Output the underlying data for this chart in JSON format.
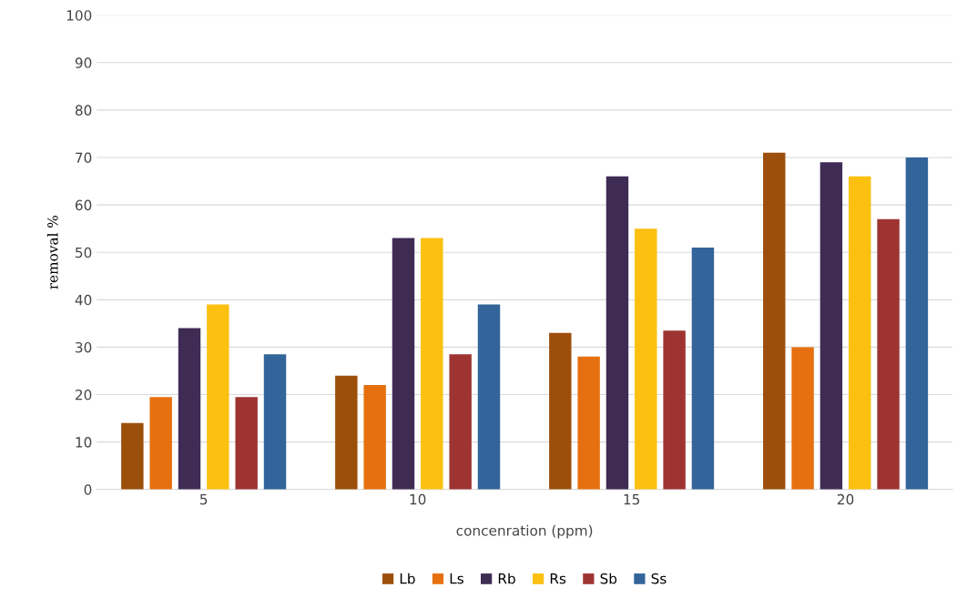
{
  "chart_data": {
    "type": "bar",
    "xlabel": "concenration (ppm)",
    "ylabel": "removal %",
    "categories": [
      "5",
      "10",
      "15",
      "20"
    ],
    "series": [
      {
        "name": "Lb",
        "color": "#9c4f0b",
        "values": [
          14,
          24,
          33,
          71
        ]
      },
      {
        "name": "Ls",
        "color": "#e6700f",
        "values": [
          19.5,
          22,
          28,
          30
        ]
      },
      {
        "name": "Rb",
        "color": "#3e2c55",
        "values": [
          34,
          53,
          66,
          69
        ]
      },
      {
        "name": "Rs",
        "color": "#fbc010",
        "values": [
          39,
          53,
          55,
          66
        ]
      },
      {
        "name": "Sb",
        "color": "#9e3432",
        "values": [
          19.5,
          28.5,
          33.5,
          57
        ]
      },
      {
        "name": "Ss",
        "color": "#33649a",
        "values": [
          28.5,
          39,
          51,
          70
        ]
      }
    ],
    "ylim": [
      0,
      100
    ],
    "yticks": [
      0,
      10,
      20,
      30,
      40,
      50,
      60,
      70,
      80,
      90,
      100
    ],
    "grid": "y",
    "legend": "bottom"
  }
}
